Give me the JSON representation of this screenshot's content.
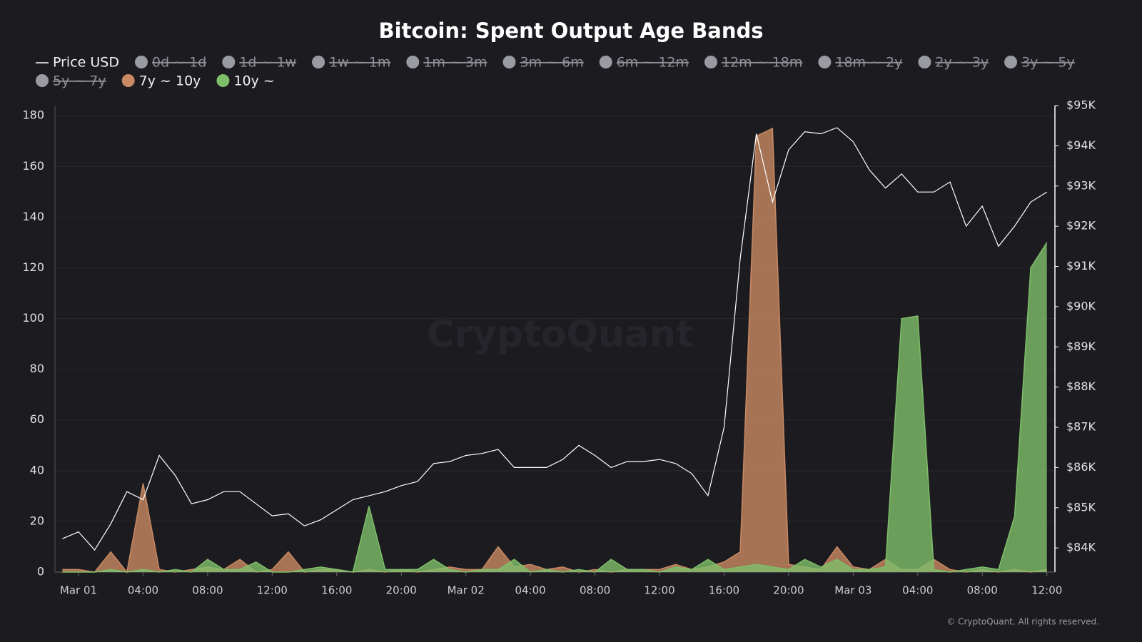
{
  "chart_data": {
    "type": "area",
    "title": "Bitcoin: Spent Output Age Bands",
    "watermark": "CryptoQuant",
    "copyright": "© CryptoQuant. All rights reserved.",
    "x": [
      -1,
      0,
      1,
      2,
      3,
      4,
      5,
      6,
      7,
      8,
      9,
      10,
      11,
      12,
      13,
      14,
      15,
      16,
      17,
      18,
      19,
      20,
      21,
      22,
      23,
      24,
      25,
      26,
      27,
      28,
      29,
      30,
      31,
      32,
      33,
      34,
      35,
      36,
      37,
      38,
      39,
      40,
      41,
      42,
      43,
      44,
      45,
      46,
      47,
      48,
      49,
      50,
      51,
      52,
      53,
      54,
      55,
      56,
      57,
      58,
      59,
      60
    ],
    "xlim": [
      -1.46,
      60.5
    ],
    "xticks": [
      {
        "value": 0,
        "label": "Mar 01"
      },
      {
        "value": 4,
        "label": "04:00"
      },
      {
        "value": 8,
        "label": "08:00"
      },
      {
        "value": 12,
        "label": "12:00"
      },
      {
        "value": 16,
        "label": "16:00"
      },
      {
        "value": 20,
        "label": "20:00"
      },
      {
        "value": 24,
        "label": "Mar 02"
      },
      {
        "value": 28,
        "label": "04:00"
      },
      {
        "value": 32,
        "label": "08:00"
      },
      {
        "value": 36,
        "label": "12:00"
      },
      {
        "value": 40,
        "label": "16:00"
      },
      {
        "value": 44,
        "label": "20:00"
      },
      {
        "value": 48,
        "label": "Mar 03"
      },
      {
        "value": 52,
        "label": "04:00"
      },
      {
        "value": 56,
        "label": "08:00"
      },
      {
        "value": 60,
        "label": "12:00"
      }
    ],
    "ylim": [
      0,
      184
    ],
    "yticks": [
      0,
      20,
      40,
      60,
      80,
      100,
      120,
      140,
      160,
      180
    ],
    "y2lim": [
      83400,
      95000
    ],
    "y2ticks": [
      {
        "value": 84000,
        "label": "$84K"
      },
      {
        "value": 85000,
        "label": "$85K"
      },
      {
        "value": 86000,
        "label": "$86K"
      },
      {
        "value": 87000,
        "label": "$87K"
      },
      {
        "value": 88000,
        "label": "$88K"
      },
      {
        "value": 89000,
        "label": "$89K"
      },
      {
        "value": 90000,
        "label": "$90K"
      },
      {
        "value": 91000,
        "label": "$91K"
      },
      {
        "value": 92000,
        "label": "$92K"
      },
      {
        "value": 93000,
        "label": "$93K"
      },
      {
        "value": 94000,
        "label": "$94K"
      },
      {
        "value": 95000,
        "label": "$95K"
      }
    ],
    "grid": true,
    "hidden_series": [
      "0d ~ 1d",
      "1d ~ 1w",
      "1w ~ 1m",
      "1m ~ 3m",
      "3m ~ 6m",
      "6m ~ 12m",
      "12m ~ 18m",
      "18m ~ 2y",
      "2y ~ 3y",
      "3y ~ 5y",
      "5y ~ 7y"
    ],
    "series": [
      {
        "name": "Price USD",
        "type": "line",
        "axis": "y2",
        "color": "#ffffff",
        "values": [
          84230,
          84400,
          83950,
          84600,
          85400,
          85200,
          86300,
          85800,
          85100,
          85200,
          85400,
          85400,
          85100,
          84800,
          84850,
          84550,
          84700,
          84950,
          85200,
          85300,
          85400,
          85550,
          85650,
          86100,
          86150,
          86300,
          86350,
          86450,
          86000,
          86000,
          86000,
          86200,
          86550,
          86300,
          86000,
          86150,
          86150,
          86200,
          86100,
          85850,
          85300,
          87000,
          91200,
          94300,
          92600,
          93900,
          94350,
          94300,
          94450,
          94100,
          93400,
          92950,
          93300,
          92850,
          92850,
          93100,
          92000,
          92500,
          91500,
          92000,
          92600,
          92850
        ]
      },
      {
        "name": "7y ~ 10y",
        "type": "area",
        "color": "#c98a63",
        "values": [
          1,
          1,
          0,
          8,
          0,
          35,
          1,
          0,
          1,
          2,
          1,
          5,
          0,
          1,
          8,
          0,
          1,
          1,
          0,
          1,
          0,
          1,
          0,
          1,
          2,
          1,
          1,
          10,
          2,
          3,
          1,
          2,
          0,
          1,
          0,
          1,
          1,
          1,
          3,
          1,
          2,
          4,
          8,
          172,
          175,
          3,
          2,
          1,
          10,
          2,
          1,
          5,
          1,
          1,
          5,
          1,
          0,
          1,
          0,
          1,
          0,
          1
        ]
      },
      {
        "name": "10y ~",
        "type": "area",
        "color": "#7fbf6a",
        "values": [
          0,
          0,
          0,
          1,
          0,
          1,
          0,
          1,
          0,
          5,
          1,
          1,
          4,
          0,
          0,
          1,
          2,
          1,
          0,
          26,
          1,
          1,
          1,
          5,
          1,
          0,
          1,
          1,
          5,
          0,
          1,
          0,
          1,
          0,
          5,
          1,
          1,
          0,
          2,
          1,
          5,
          1,
          2,
          3,
          2,
          1,
          5,
          2,
          5,
          1,
          1,
          2,
          100,
          101,
          1,
          0,
          1,
          2,
          1,
          22,
          120,
          130
        ]
      }
    ]
  }
}
